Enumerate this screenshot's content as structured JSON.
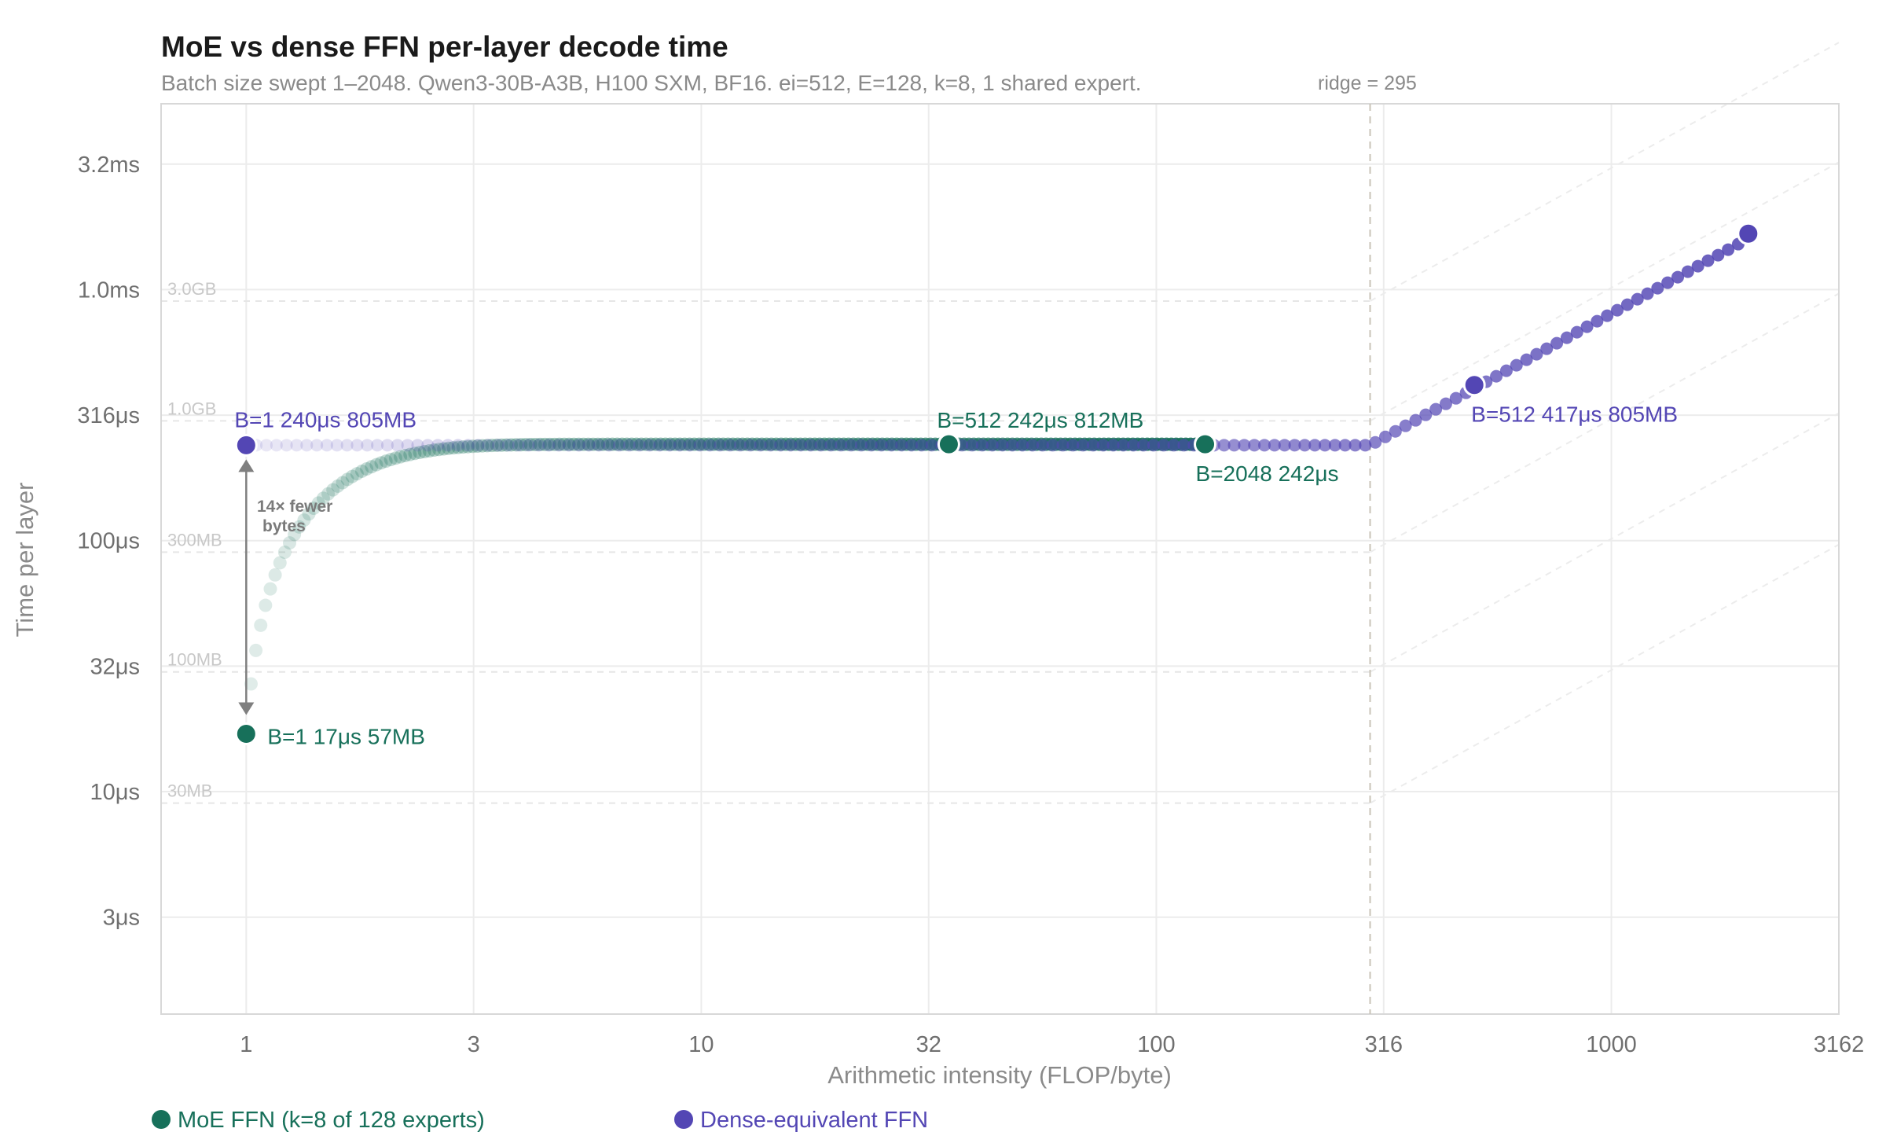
{
  "chart_data": {
    "type": "scatter",
    "title": "MoE vs dense FFN per-layer decode time",
    "subtitle": "Batch size swept 1–2048. Qwen3-30B-A3B, H100 SXM, BF16. ei=512, E=128, k=8, 1 shared expert.",
    "xlabel": "Arithmetic intensity (FLOP/byte)",
    "ylabel": "Time per layer",
    "x_scale": "log",
    "y_scale": "log",
    "xlim": [
      0.65,
      3162
    ],
    "ylim": [
      1.3e-06,
      0.0055
    ],
    "x_ticks": [
      {
        "value": 1,
        "label": "1"
      },
      {
        "value": 3.16,
        "label": "3"
      },
      {
        "value": 10,
        "label": "10"
      },
      {
        "value": 31.6,
        "label": "32"
      },
      {
        "value": 100,
        "label": "100"
      },
      {
        "value": 316,
        "label": "316"
      },
      {
        "value": 1000,
        "label": "1000"
      },
      {
        "value": 3162,
        "label": "3162"
      }
    ],
    "y_ticks": [
      {
        "value": 3.1623e-06,
        "label": "3μs"
      },
      {
        "value": 1e-05,
        "label": "10μs"
      },
      {
        "value": 3.1623e-05,
        "label": "32μs"
      },
      {
        "value": 0.0001,
        "label": "100μs"
      },
      {
        "value": 0.00031623,
        "label": "316μs"
      },
      {
        "value": 0.001,
        "label": "1.0ms"
      },
      {
        "value": 0.0031623,
        "label": "3.2ms"
      }
    ],
    "grid": true,
    "byte_lines": [
      {
        "label": "30MB",
        "time_at_left": 9e-06
      },
      {
        "label": "100MB",
        "time_at_left": 3e-05
      },
      {
        "label": "300MB",
        "time_at_left": 9e-05
      },
      {
        "label": "1.0GB",
        "time_at_left": 0.0003
      },
      {
        "label": "3.0GB",
        "time_at_left": 0.0009
      }
    ],
    "ridge": {
      "x": 295,
      "label": "ridge = 295"
    },
    "series": [
      {
        "name": "MoE FFN (k=8 of 128 experts)",
        "color": "#17705a",
        "x_range": [
          1,
          128
        ],
        "y_start": 1.7e-05,
        "y_plateau": 0.000242,
        "batch_range": [
          1,
          2048
        ]
      },
      {
        "name": "Dense-equivalent FFN",
        "color": "#5346b4",
        "x_range": [
          1,
          2000
        ],
        "y_flat": 0.00024,
        "ridge_x": 295,
        "batch_range": [
          1,
          2048
        ]
      }
    ],
    "highlights": [
      {
        "series": 0,
        "x": 1,
        "y": 1.7e-05,
        "label": "B=1 17μs 57MB",
        "pos": "right"
      },
      {
        "series": 0,
        "x": 35,
        "y": 0.000242,
        "label": "B=512 242μs 812MB",
        "pos": "above"
      },
      {
        "series": 0,
        "x": 128,
        "y": 0.000242,
        "label": "B=2048 242μs",
        "pos": "below"
      },
      {
        "series": 1,
        "x": 1,
        "y": 0.00024,
        "label": "B=1 240μs 805MB",
        "pos": "above"
      },
      {
        "series": 1,
        "x": 500,
        "y": 0.000417,
        "label": "B=512 417μs 805MB",
        "pos": "below"
      },
      {
        "series": 1,
        "x": 2000,
        "y": 0.00167,
        "label": "",
        "pos": "none"
      }
    ],
    "annotation": {
      "line1": "14× fewer",
      "line2": "bytes"
    },
    "legend": "bottom-left"
  }
}
